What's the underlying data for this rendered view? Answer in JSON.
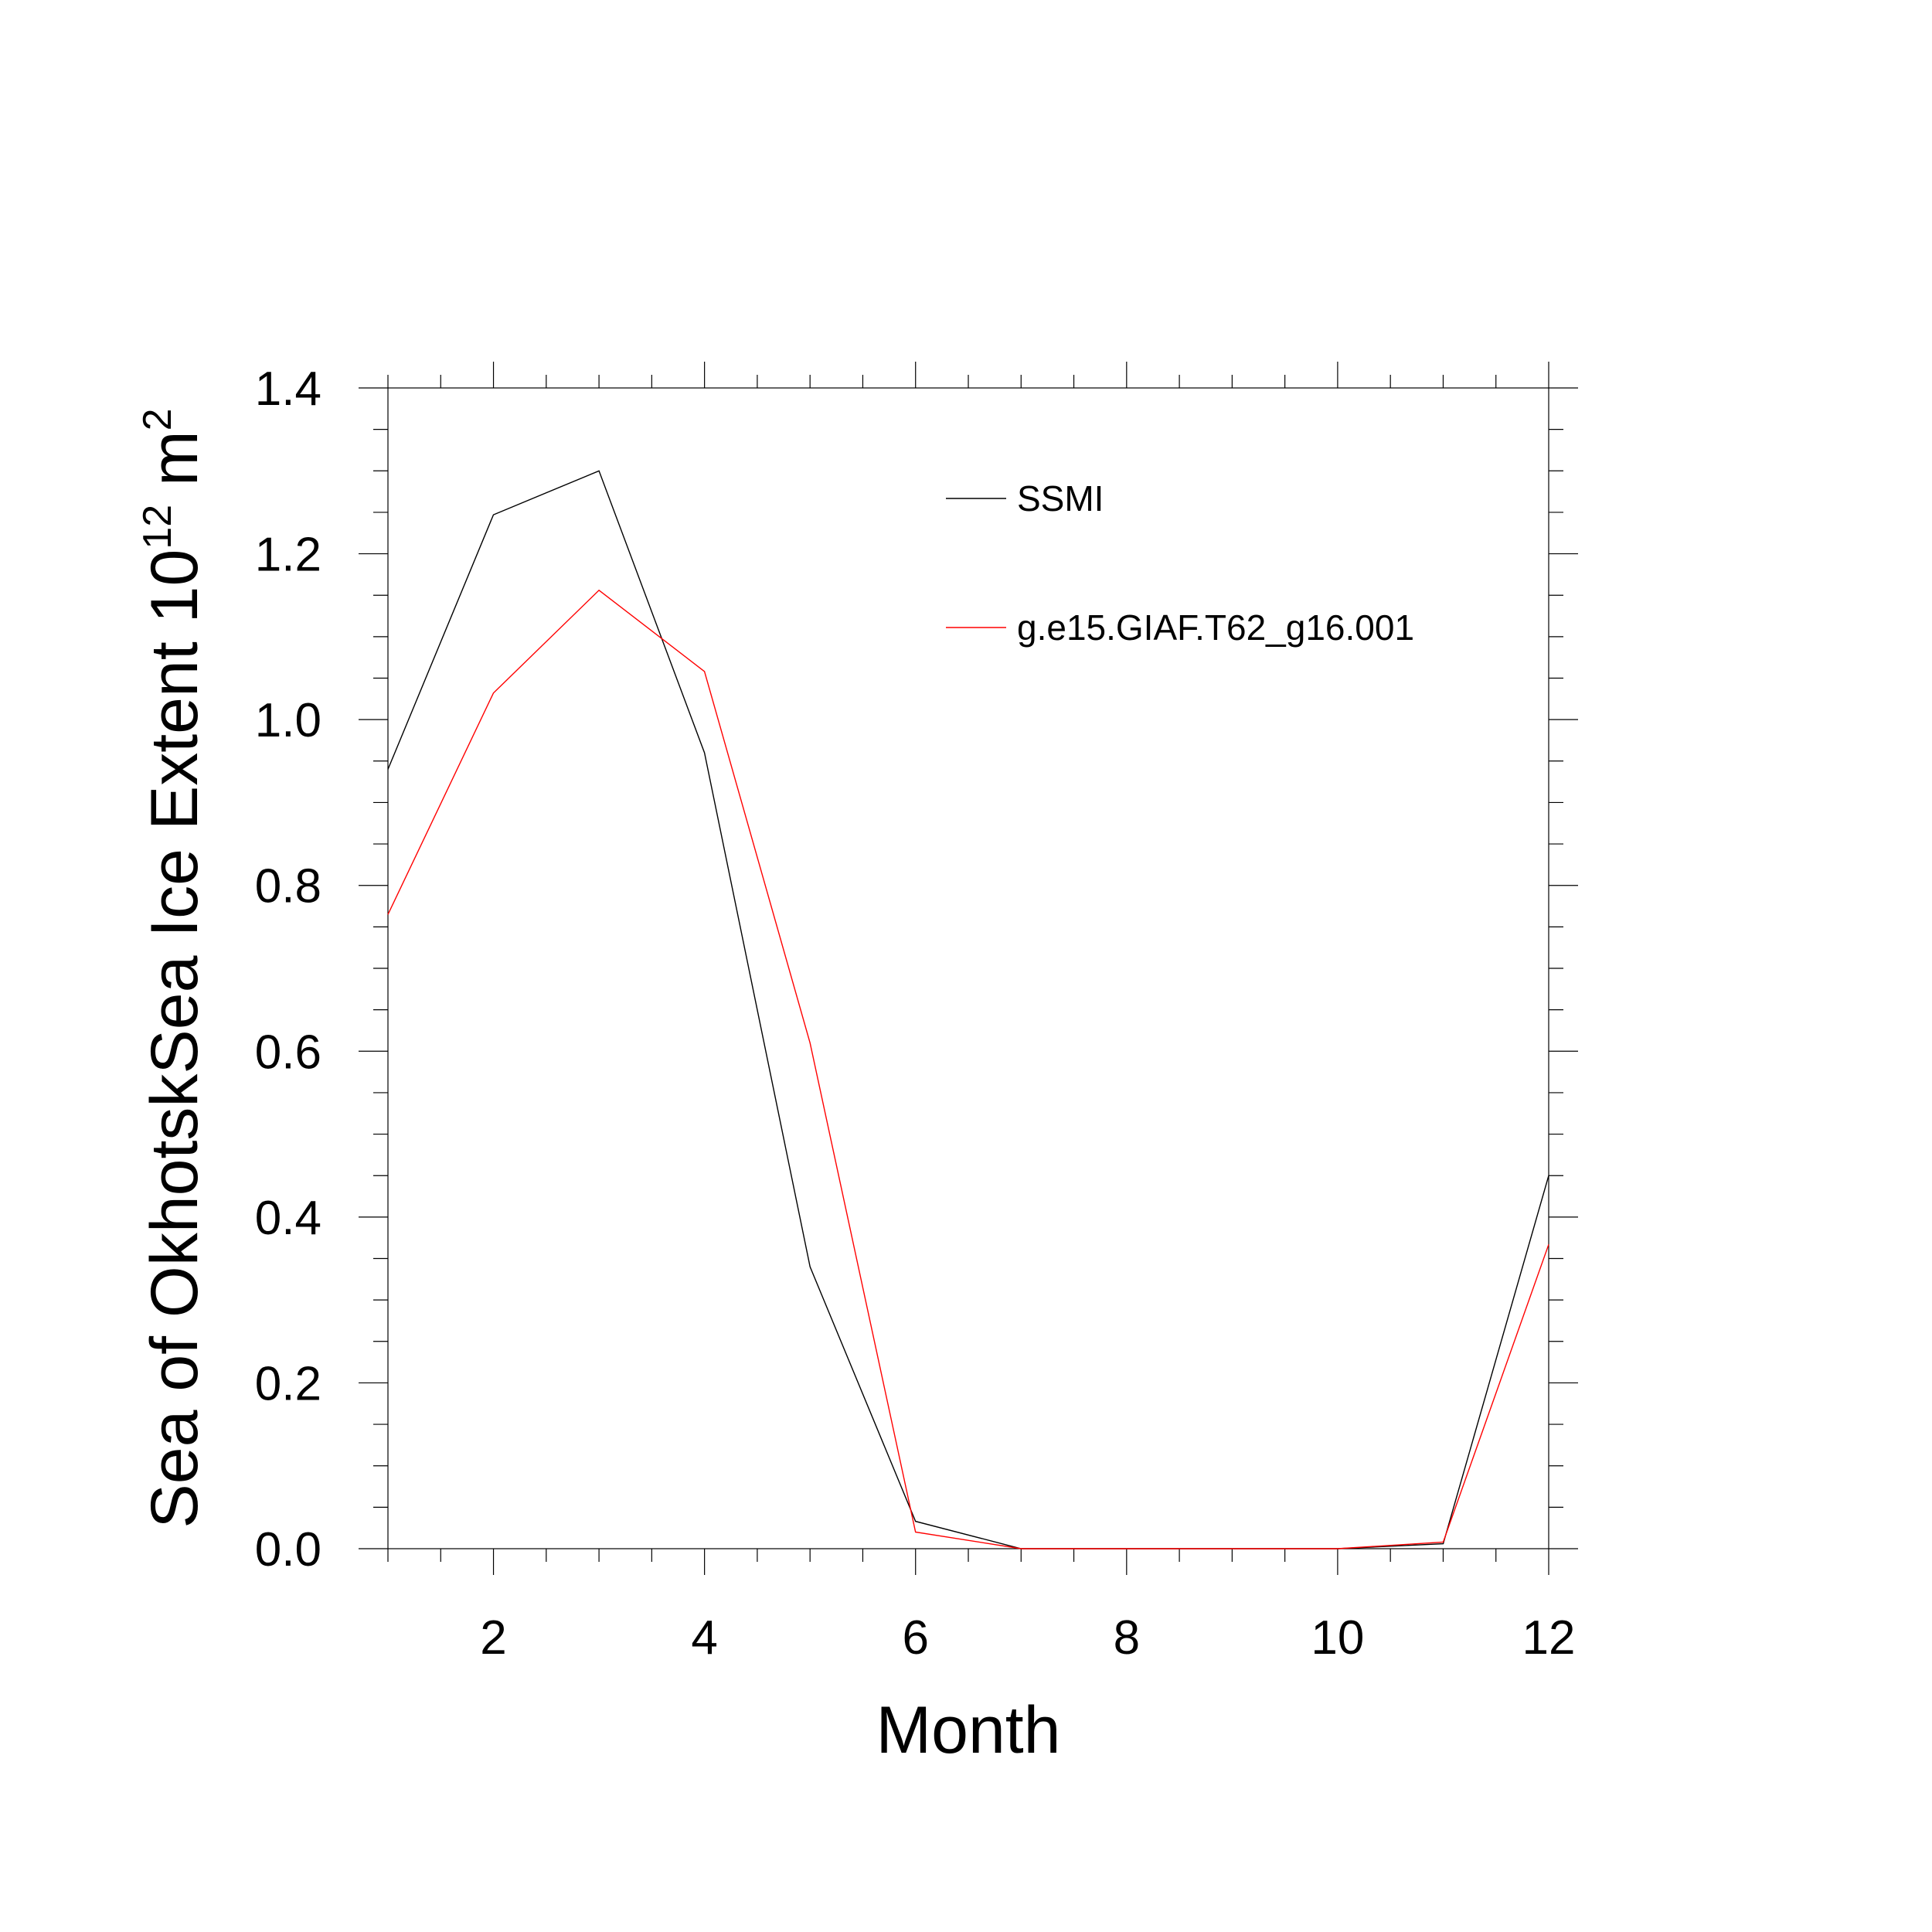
{
  "chart_data": {
    "type": "line",
    "xlabel": "Month",
    "ylabel": {
      "text": "Sea of OkhotskSea Ice Extent 10",
      "exponent": "12",
      "unit": " m",
      "unit_exponent": "2"
    },
    "xlim": [
      1,
      12
    ],
    "ylim": [
      0,
      1.4
    ],
    "xticks": [
      2,
      4,
      6,
      8,
      10,
      12
    ],
    "xtick_labels": [
      "2",
      "4",
      "6",
      "8",
      "10",
      "12"
    ],
    "yticks": [
      0,
      0.2,
      0.4,
      0.6,
      0.8,
      1.0,
      1.2,
      1.4
    ],
    "ytick_labels": [
      "0.0",
      "0.2",
      "0.4",
      "0.6",
      "0.8",
      "1.0",
      "1.2",
      "1.4"
    ],
    "grid": false,
    "legend_position": "top-right",
    "x": [
      1,
      2,
      3,
      4,
      5,
      6,
      7,
      8,
      9,
      10,
      11,
      12
    ],
    "series": [
      {
        "name": "SSMI",
        "color": "#000000",
        "values": [
          0.94,
          1.247,
          1.3,
          0.96,
          0.34,
          0.033,
          0.0,
          0.0,
          0.0,
          0.0,
          0.006,
          0.45
        ]
      },
      {
        "name": "g.e15.GIAF.T62_g16.001",
        "color": "#ff0000",
        "values": [
          0.765,
          1.032,
          1.156,
          1.058,
          0.61,
          0.02,
          0.0,
          0.0,
          0.0,
          0.0,
          0.008,
          0.367
        ]
      }
    ]
  }
}
